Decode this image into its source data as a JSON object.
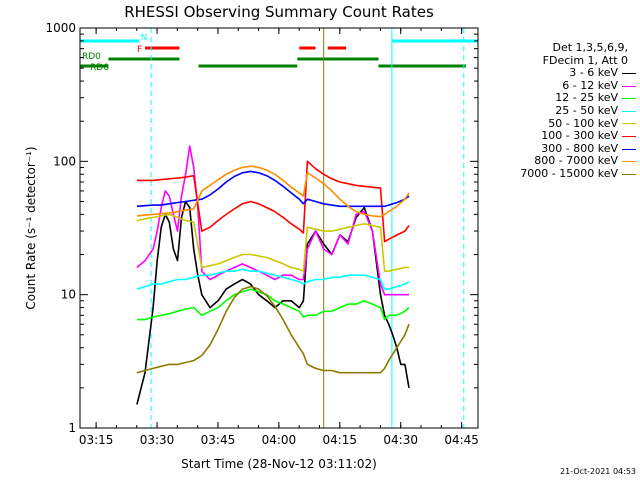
{
  "chart_data": {
    "type": "line",
    "title": "RHESSI Observing Summary Count Rates",
    "xlabel": "Start Time (28-Nov-12 03:11:02)",
    "ylabel": "Count Rate (s⁻¹ detector⁻¹)",
    "ylog": true,
    "ylim": [
      1,
      1000
    ],
    "xlim_minutes": [
      0,
      98
    ],
    "x_ticks": [
      {
        "label": "03:15",
        "minute": 3.97
      },
      {
        "label": "03:30",
        "minute": 18.97
      },
      {
        "label": "03:45",
        "minute": 33.97
      },
      {
        "label": "04:00",
        "minute": 48.97
      },
      {
        "label": "04:15",
        "minute": 63.97
      },
      {
        "label": "04:30",
        "minute": 78.97
      },
      {
        "label": "04:45",
        "minute": 93.97
      }
    ],
    "y_ticks": [
      1,
      10,
      100,
      1000
    ],
    "legend_header": [
      "Det 1,3,5,6,9,",
      "FDecim 1, Att 0"
    ],
    "series": [
      {
        "name": "3 - 6 keV",
        "color": "#000000",
        "x": [
          14,
          16,
          18,
          19,
          20,
          21,
          22,
          23,
          24,
          25,
          26,
          27,
          28,
          29,
          30,
          32,
          34,
          36,
          38,
          40,
          42,
          44,
          46,
          48,
          50,
          52,
          54,
          55,
          56,
          58,
          60,
          62,
          64,
          66,
          68,
          70,
          72,
          74,
          75,
          76,
          77,
          78,
          79,
          80,
          81
        ],
        "y": [
          1.5,
          2.6,
          8,
          18,
          32,
          40,
          35,
          22,
          18,
          38,
          50,
          45,
          22,
          14,
          10,
          8,
          9,
          11,
          12,
          13,
          12,
          10,
          9,
          8,
          9,
          9,
          8,
          9,
          24,
          30,
          24,
          20,
          28,
          25,
          38,
          45,
          30,
          10,
          7,
          6,
          5,
          4,
          3,
          3,
          2
        ]
      },
      {
        "name": "6 - 12 keV",
        "color": "#ff00ff",
        "x": [
          14,
          16,
          18,
          19,
          20,
          21,
          22,
          23,
          24,
          25,
          26,
          27,
          28,
          29,
          30,
          32,
          34,
          36,
          38,
          40,
          42,
          44,
          46,
          48,
          50,
          52,
          54,
          55,
          56,
          58,
          60,
          62,
          64,
          66,
          68,
          70,
          72,
          74,
          75,
          76,
          77,
          78,
          79,
          80,
          81
        ],
        "y": [
          16,
          18,
          22,
          30,
          45,
          60,
          55,
          40,
          30,
          55,
          80,
          130,
          90,
          45,
          15,
          13,
          14,
          15,
          16,
          17,
          16,
          15,
          14,
          13,
          14,
          14,
          13,
          13,
          22,
          30,
          22,
          20,
          28,
          24,
          40,
          42,
          30,
          12,
          10,
          10,
          10,
          10,
          10,
          10,
          10
        ]
      },
      {
        "name": "12 - 25 keV",
        "color": "#00ff00",
        "x": [
          14,
          16,
          18,
          20,
          22,
          24,
          26,
          28,
          30,
          32,
          34,
          36,
          38,
          40,
          42,
          44,
          46,
          48,
          50,
          52,
          54,
          55,
          56,
          58,
          60,
          62,
          64,
          66,
          68,
          70,
          72,
          74,
          75,
          76,
          78,
          80,
          81
        ],
        "y": [
          6.5,
          6.5,
          6.8,
          7,
          7.2,
          7.5,
          7.8,
          8,
          7,
          7.5,
          8,
          9,
          10,
          10.5,
          11,
          10.5,
          10,
          9,
          8.5,
          8,
          7.5,
          6.8,
          7,
          7,
          7.5,
          7.5,
          8,
          8.5,
          8.5,
          9,
          8.5,
          8,
          6.5,
          7,
          7,
          7.5,
          8
        ]
      },
      {
        "name": "25 - 50 keV",
        "color": "#00ffff",
        "x": [
          14,
          16,
          18,
          20,
          22,
          24,
          26,
          28,
          30,
          32,
          34,
          36,
          38,
          40,
          42,
          44,
          46,
          48,
          50,
          52,
          54,
          55,
          56,
          58,
          60,
          62,
          64,
          66,
          68,
          70,
          72,
          74,
          75,
          76,
          78,
          80,
          81
        ],
        "y": [
          11,
          11.5,
          12,
          12,
          12.5,
          13,
          13,
          13.5,
          14,
          14,
          14.5,
          15,
          15,
          15.5,
          15,
          15,
          14.5,
          14,
          13.5,
          13,
          12.5,
          12,
          12.5,
          13,
          13,
          13.5,
          13.5,
          14,
          14,
          14,
          13.5,
          13,
          11,
          11,
          11.5,
          12,
          12.5
        ]
      },
      {
        "name": "50 - 100 keV",
        "color": "#c8c800",
        "x": [
          14,
          16,
          18,
          20,
          22,
          24,
          26,
          28,
          30,
          32,
          34,
          36,
          38,
          40,
          42,
          44,
          46,
          48,
          50,
          52,
          54,
          55,
          56,
          58,
          60,
          62,
          64,
          66,
          68,
          70,
          72,
          74,
          75,
          76,
          78,
          80,
          81
        ],
        "y": [
          36,
          37,
          38,
          39,
          40,
          38,
          36,
          35,
          16,
          16.5,
          17,
          18,
          19,
          20,
          20,
          19.5,
          19,
          18,
          17,
          16,
          15.5,
          15,
          32,
          31,
          30,
          30,
          31,
          32,
          33,
          34,
          33,
          32,
          15,
          15,
          15.5,
          16,
          16
        ]
      },
      {
        "name": "100 - 300 keV",
        "color": "#ff0000",
        "x": [
          14,
          16,
          18,
          20,
          22,
          24,
          26,
          28,
          30,
          32,
          34,
          36,
          38,
          40,
          42,
          44,
          46,
          48,
          50,
          52,
          54,
          55,
          56,
          58,
          60,
          62,
          64,
          66,
          68,
          70,
          72,
          74,
          75,
          76,
          78,
          80,
          81
        ],
        "y": [
          72,
          72,
          72,
          73,
          74,
          75,
          76,
          78,
          30,
          32,
          36,
          40,
          44,
          48,
          50,
          48,
          45,
          42,
          38,
          34,
          31,
          29,
          100,
          88,
          80,
          74,
          70,
          68,
          66,
          65,
          64,
          63,
          25,
          26,
          28,
          30,
          33
        ]
      },
      {
        "name": "300 - 800 keV",
        "color": "#0000ff",
        "x": [
          14,
          16,
          18,
          20,
          22,
          24,
          26,
          28,
          30,
          32,
          34,
          36,
          38,
          40,
          42,
          44,
          46,
          48,
          50,
          52,
          54,
          55,
          56,
          58,
          60,
          62,
          64,
          66,
          68,
          70,
          72,
          74,
          75,
          76,
          78,
          80,
          81
        ],
        "y": [
          46,
          46.5,
          47,
          47,
          48,
          49,
          50,
          51,
          52,
          56,
          62,
          70,
          77,
          82,
          84,
          82,
          78,
          72,
          65,
          58,
          52,
          48,
          52,
          50,
          48,
          47,
          46,
          46,
          46,
          46,
          46,
          46,
          46,
          47,
          49,
          52,
          55
        ]
      },
      {
        "name": "800 - 7000 keV",
        "color": "#ff8c00",
        "x": [
          14,
          16,
          18,
          20,
          22,
          24,
          26,
          28,
          30,
          32,
          34,
          36,
          38,
          40,
          42,
          44,
          46,
          48,
          50,
          52,
          54,
          55,
          56,
          58,
          60,
          62,
          64,
          66,
          68,
          70,
          72,
          74,
          75,
          76,
          78,
          80,
          81
        ],
        "y": [
          39,
          39.5,
          40,
          40.5,
          41,
          42,
          43,
          44,
          60,
          66,
          73,
          80,
          86,
          90,
          92,
          90,
          86,
          80,
          72,
          64,
          58,
          55,
          82,
          75,
          68,
          60,
          52,
          46,
          42,
          40,
          39,
          38.5,
          40,
          42,
          46,
          52,
          58
        ]
      },
      {
        "name": "7000 - 15000 keV",
        "color": "#8b7a00",
        "x": [
          14,
          16,
          18,
          20,
          22,
          24,
          26,
          28,
          30,
          32,
          34,
          36,
          38,
          40,
          42,
          44,
          46,
          48,
          50,
          52,
          54,
          55,
          56,
          58,
          60,
          62,
          64,
          66,
          68,
          70,
          72,
          74,
          75,
          76,
          78,
          80,
          81
        ],
        "y": [
          2.6,
          2.7,
          2.8,
          2.9,
          3,
          3,
          3.1,
          3.2,
          3.5,
          4.2,
          5.5,
          7.5,
          9.5,
          11,
          11.5,
          11,
          9.8,
          8.2,
          6.5,
          5,
          4,
          3.6,
          3,
          2.8,
          2.7,
          2.7,
          2.6,
          2.6,
          2.6,
          2.6,
          2.6,
          2.6,
          2.8,
          3.2,
          4,
          5,
          6
        ]
      }
    ],
    "flag_bars": [
      {
        "label": "",
        "color": "#00ffff",
        "y_rank": 0,
        "segments": [
          [
            0,
            14.4
          ],
          [
            76.8,
            98
          ]
        ]
      },
      {
        "label": "N",
        "color": "#00ffff",
        "y_rank": 0,
        "segments": [
          [
            14.2,
            14.6
          ]
        ]
      },
      {
        "label": "F",
        "color": "#ff0000",
        "y_rank": 1,
        "segments": [
          [
            16,
            24.5
          ],
          [
            54,
            58
          ],
          [
            61,
            65.5
          ]
        ]
      },
      {
        "label": "RD0",
        "color": "#008000",
        "y_rank": 2,
        "segments": [
          [
            7,
            24.5
          ]
        ]
      },
      {
        "label": "RD6",
        "color": "#008000",
        "y_rank": 3,
        "segments": [
          [
            0,
            7
          ],
          [
            29.2,
            53.5
          ],
          [
            73.5,
            95
          ]
        ]
      },
      {
        "label": "",
        "color": "#008000",
        "y_rank": 2,
        "segments": [
          [
            53.5,
            73.5
          ]
        ]
      }
    ],
    "vlines": [
      {
        "minute": 0,
        "color": "#00ffff",
        "style": "solid"
      },
      {
        "minute": 17.5,
        "color": "#00ffff",
        "style": "dashed"
      },
      {
        "minute": 76.8,
        "color": "#00ffff",
        "style": "solid"
      },
      {
        "minute": 94.5,
        "color": "#00ffff",
        "style": "dashed"
      },
      {
        "minute": 60,
        "color": "#8b7a00",
        "style": "solid"
      }
    ]
  },
  "legend": {
    "header_line1": "Det 1,3,5,6,9,",
    "header_line2": "FDecim 1, Att 0"
  },
  "timestamp": "21-Oct-2021 04:53"
}
